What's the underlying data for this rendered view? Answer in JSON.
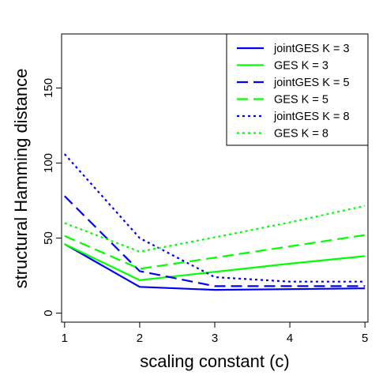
{
  "chart_data": {
    "type": "line",
    "title": "",
    "xlabel": "scaling constant (c)",
    "ylabel": "structural Hamming distance",
    "x": [
      1,
      2,
      3,
      4,
      5
    ],
    "xlim": [
      0.96,
      5.04
    ],
    "ylim": [
      -6.0,
      186.0
    ],
    "xticks": [
      "1",
      "2",
      "3",
      "4",
      "5"
    ],
    "yticks": [
      "0",
      "50",
      "100",
      "150"
    ],
    "grid": false,
    "legend_position": "top-right",
    "series": [
      {
        "name": "jointGES K = 3",
        "color": "#0000ff",
        "dash": "solid",
        "values": [
          46,
          17.5,
          15.5,
          16,
          16.5
        ]
      },
      {
        "name": "GES K = 3",
        "color": "#00ff00",
        "dash": "solid",
        "values": [
          46,
          22,
          27.5,
          33,
          38
        ]
      },
      {
        "name": "jointGES K = 5",
        "color": "#0000ff",
        "dash": "dashed",
        "values": [
          78,
          28,
          18,
          18,
          18
        ]
      },
      {
        "name": "GES K = 5",
        "color": "#00ff00",
        "dash": "dashed",
        "values": [
          51.5,
          29.5,
          37,
          44.5,
          52
        ]
      },
      {
        "name": "jointGES K = 8",
        "color": "#0000ff",
        "dash": "dotted",
        "values": [
          106,
          50,
          24,
          21,
          21
        ]
      },
      {
        "name": "GES K = 8",
        "color": "#00ff00",
        "dash": "dotted",
        "values": [
          60,
          41,
          50.5,
          60.5,
          71.5
        ]
      }
    ]
  }
}
